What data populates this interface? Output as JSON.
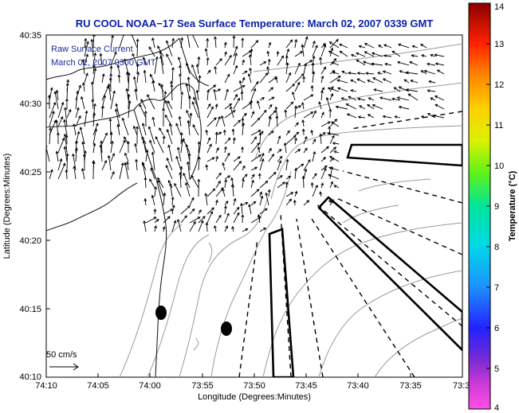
{
  "title": "RU COOL  NOAA−17  Sea Surface Temperature:  March 02, 2007 0339 GMT",
  "subtitle_line1": "Raw Surface Current",
  "subtitle_line2": "March 02, 2007 0300 GMT",
  "x_axis": {
    "label": "Longitude (Degrees:Minutes)",
    "ticks": [
      "74:10",
      "74:05",
      "74:00",
      "73:55",
      "73:50",
      "73:45",
      "73:40",
      "73:35",
      "73:3"
    ]
  },
  "y_axis": {
    "label": "Latitude (Degrees:Minutes)",
    "ticks": [
      "40:35",
      "40:30",
      "40:25",
      "40:20",
      "40:15",
      "40:10"
    ]
  },
  "scale_label": "50 cm/s",
  "colorbar": {
    "label": "Temperature (°C)",
    "ticks": [
      "14",
      "13",
      "12",
      "11",
      "10",
      "9",
      "8",
      "7",
      "6",
      "5",
      "4"
    ],
    "range": [
      4,
      14
    ]
  },
  "colors": {
    "title": "#0b1fa8",
    "subtitle": "#1a2a9a",
    "contour": "#9a9a9a",
    "coastline": "#222222",
    "vectors": "#000000"
  }
}
